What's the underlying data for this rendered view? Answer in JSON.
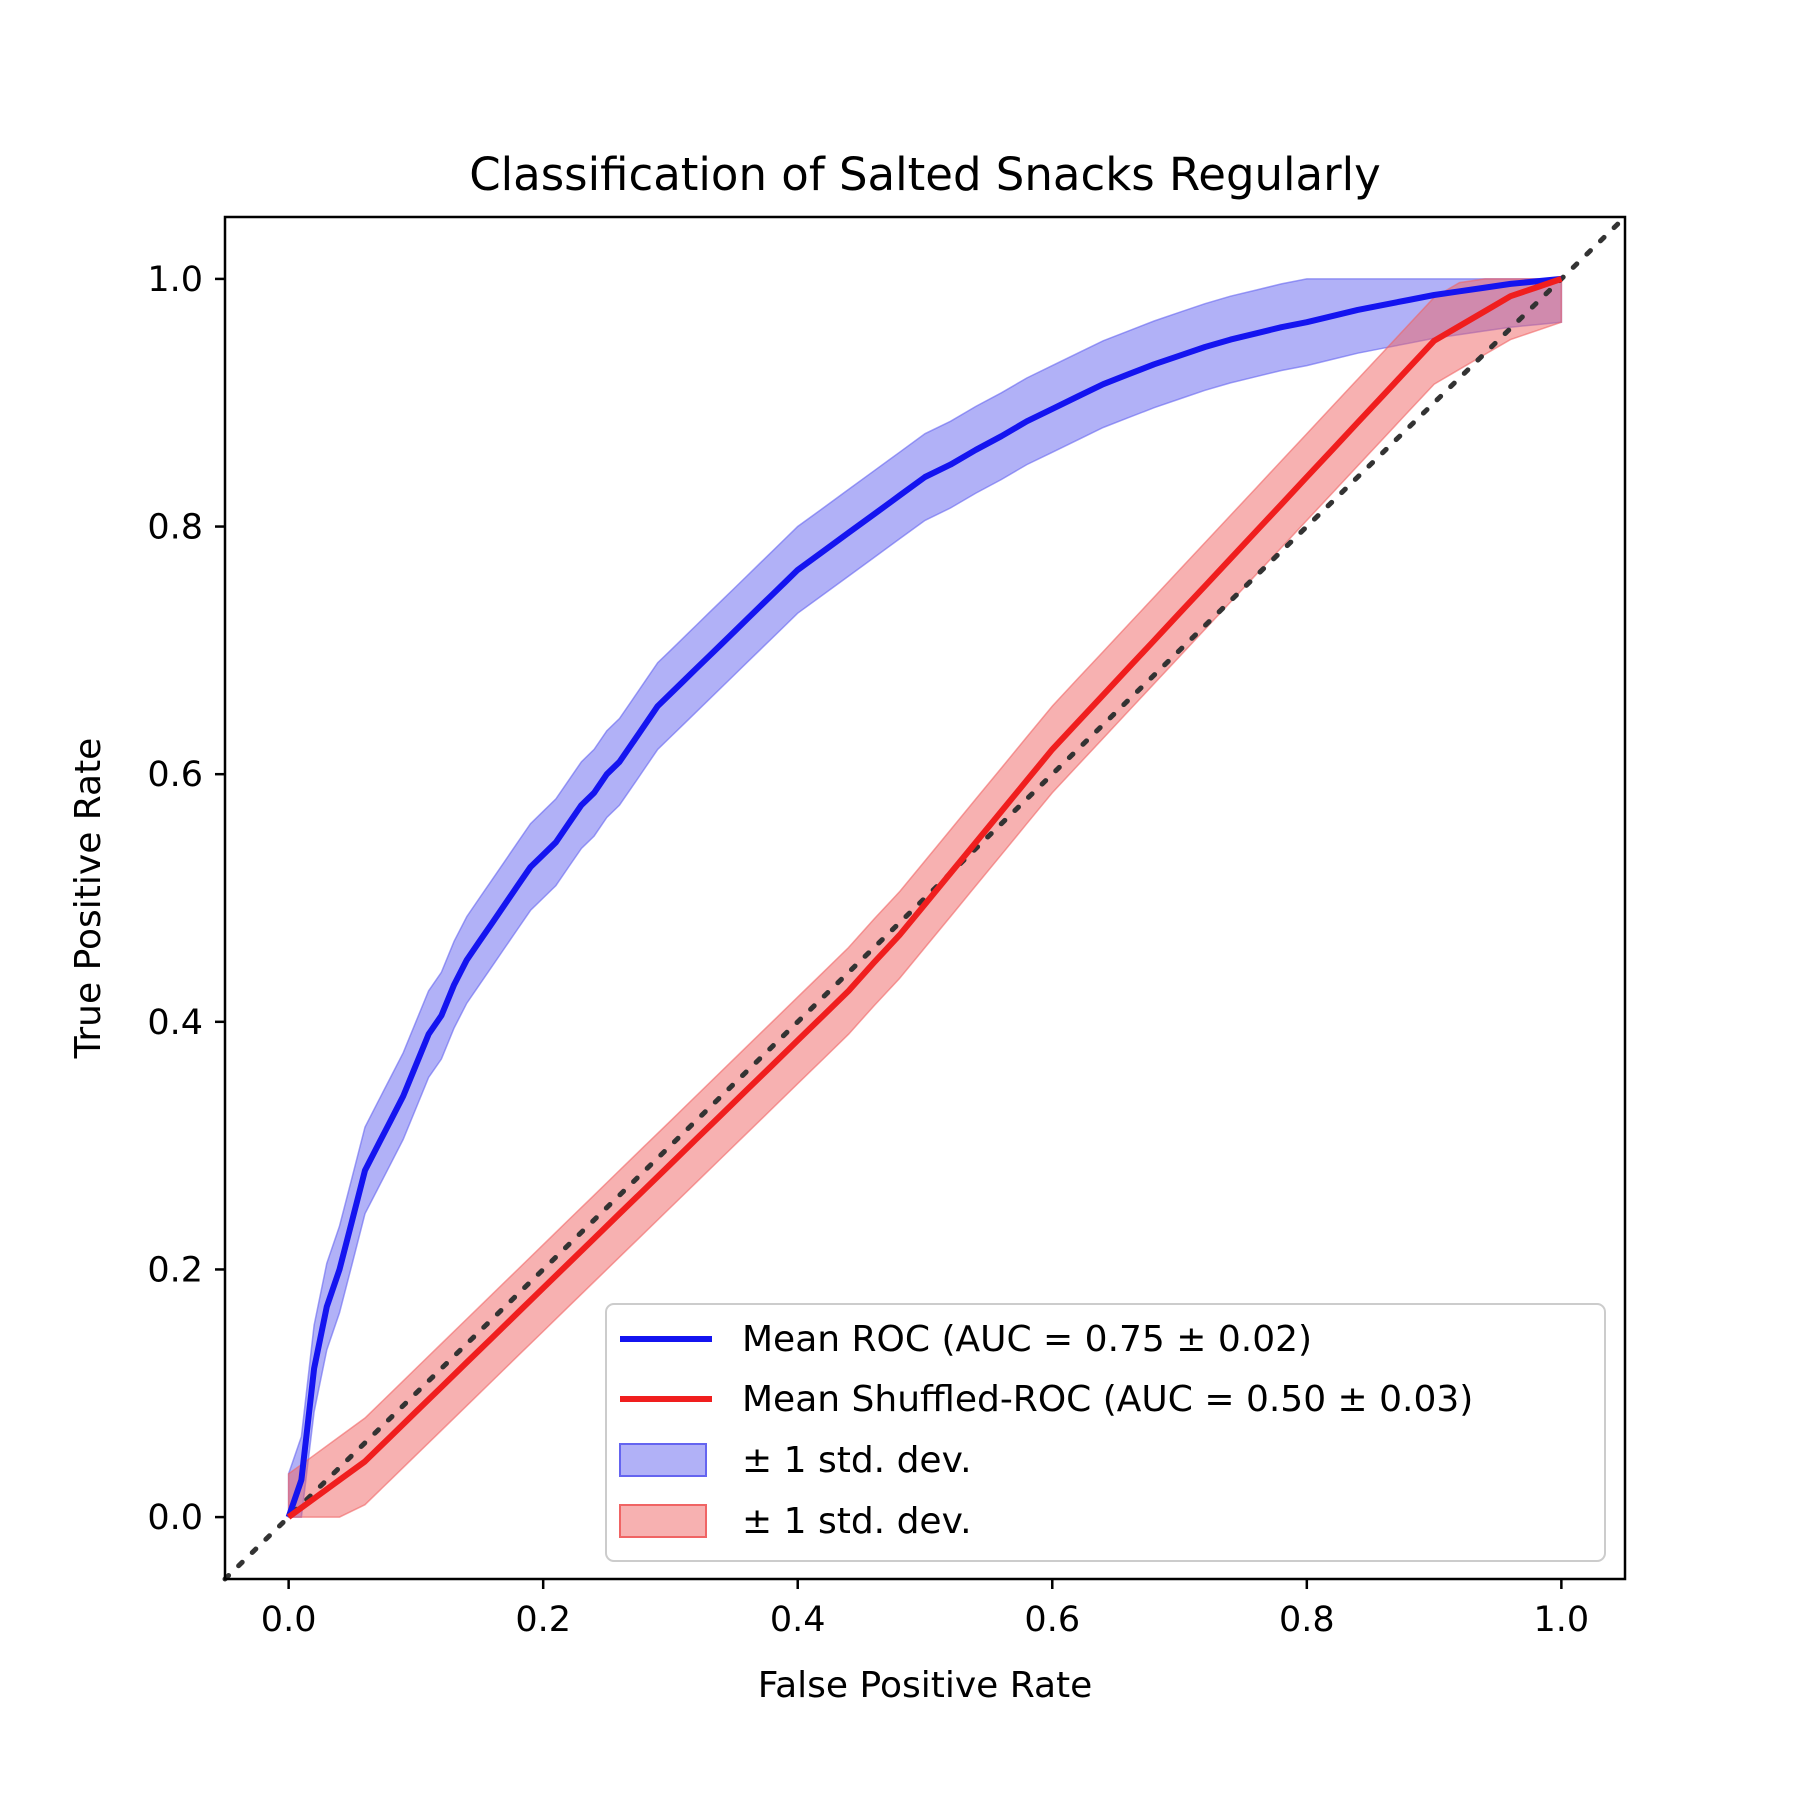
{
  "chart_data": {
    "type": "line",
    "title": "Classification of Salted Snacks Regularly",
    "xlabel": "False Positive Rate",
    "ylabel": "True Positive Rate",
    "xlim": [
      -0.05,
      1.05
    ],
    "ylim": [
      -0.05,
      1.05
    ],
    "x_ticks": [
      0.0,
      0.2,
      0.4,
      0.6,
      0.8,
      1.0
    ],
    "y_ticks": [
      0.0,
      0.2,
      0.4,
      0.6,
      0.8,
      1.0
    ],
    "x_tick_labels": [
      "0.0",
      "0.2",
      "0.4",
      "0.6",
      "0.8",
      "1.0"
    ],
    "y_tick_labels": [
      "0.0",
      "0.2",
      "0.4",
      "0.6",
      "0.8",
      "1.0"
    ],
    "grid": false,
    "legend_position": "lower-right",
    "reference_line": {
      "x": [
        -0.05,
        1.05
      ],
      "y": [
        -0.05,
        1.05
      ],
      "color": "#333333",
      "style": "dotted"
    },
    "series": [
      {
        "name": "Mean ROC (AUC = 0.75 ± 0.02)",
        "color": "#1414f0",
        "x": [
          0.0,
          0.01,
          0.02,
          0.03,
          0.04,
          0.05,
          0.06,
          0.07,
          0.08,
          0.09,
          0.1,
          0.11,
          0.12,
          0.13,
          0.14,
          0.15,
          0.16,
          0.17,
          0.18,
          0.19,
          0.2,
          0.21,
          0.22,
          0.23,
          0.24,
          0.25,
          0.26,
          0.27,
          0.28,
          0.29,
          0.3,
          0.31,
          0.32,
          0.33,
          0.34,
          0.35,
          0.36,
          0.37,
          0.38,
          0.39,
          0.4,
          0.42,
          0.44,
          0.46,
          0.48,
          0.5,
          0.52,
          0.54,
          0.56,
          0.58,
          0.6,
          0.62,
          0.64,
          0.66,
          0.68,
          0.7,
          0.72,
          0.74,
          0.76,
          0.78,
          0.8,
          0.82,
          0.84,
          0.86,
          0.88,
          0.9,
          0.92,
          0.94,
          0.96,
          0.98,
          1.0
        ],
        "y": [
          0.0,
          0.03,
          0.12,
          0.17,
          0.2,
          0.24,
          0.28,
          0.3,
          0.32,
          0.34,
          0.365,
          0.39,
          0.405,
          0.43,
          0.45,
          0.465,
          0.48,
          0.495,
          0.51,
          0.525,
          0.535,
          0.545,
          0.56,
          0.575,
          0.585,
          0.6,
          0.61,
          0.625,
          0.64,
          0.655,
          0.665,
          0.675,
          0.685,
          0.695,
          0.705,
          0.715,
          0.725,
          0.735,
          0.745,
          0.755,
          0.765,
          0.78,
          0.795,
          0.81,
          0.825,
          0.84,
          0.85,
          0.862,
          0.873,
          0.885,
          0.895,
          0.905,
          0.915,
          0.923,
          0.931,
          0.938,
          0.945,
          0.951,
          0.956,
          0.961,
          0.965,
          0.97,
          0.975,
          0.979,
          0.983,
          0.987,
          0.99,
          0.993,
          0.996,
          0.998,
          1.0
        ],
        "std_dev": 0.035,
        "band_label": "± 1 std. dev.",
        "band_color": "#6464f0"
      },
      {
        "name": "Mean Shuffled-ROC (AUC = 0.50 ± 0.03)",
        "color": "#f01e1e",
        "x": [
          0.0,
          0.02,
          0.04,
          0.06,
          0.08,
          0.1,
          0.12,
          0.14,
          0.16,
          0.18,
          0.2,
          0.22,
          0.24,
          0.26,
          0.28,
          0.3,
          0.32,
          0.34,
          0.36,
          0.38,
          0.4,
          0.42,
          0.44,
          0.46,
          0.48,
          0.5,
          0.52,
          0.54,
          0.56,
          0.58,
          0.6,
          0.62,
          0.64,
          0.66,
          0.68,
          0.7,
          0.72,
          0.74,
          0.76,
          0.78,
          0.8,
          0.82,
          0.84,
          0.86,
          0.88,
          0.9,
          0.92,
          0.94,
          0.96,
          0.98,
          1.0
        ],
        "y": [
          0.0,
          0.015,
          0.03,
          0.045,
          0.065,
          0.085,
          0.105,
          0.125,
          0.145,
          0.165,
          0.185,
          0.205,
          0.225,
          0.245,
          0.265,
          0.285,
          0.305,
          0.325,
          0.345,
          0.365,
          0.385,
          0.405,
          0.425,
          0.448,
          0.47,
          0.495,
          0.52,
          0.545,
          0.57,
          0.595,
          0.62,
          0.642,
          0.664,
          0.686,
          0.708,
          0.73,
          0.752,
          0.774,
          0.796,
          0.818,
          0.84,
          0.862,
          0.884,
          0.906,
          0.928,
          0.95,
          0.962,
          0.974,
          0.986,
          0.993,
          1.0
        ],
        "std_dev": 0.035,
        "band_label": "± 1 std. dev.",
        "band_color": "#f06464"
      }
    ]
  }
}
